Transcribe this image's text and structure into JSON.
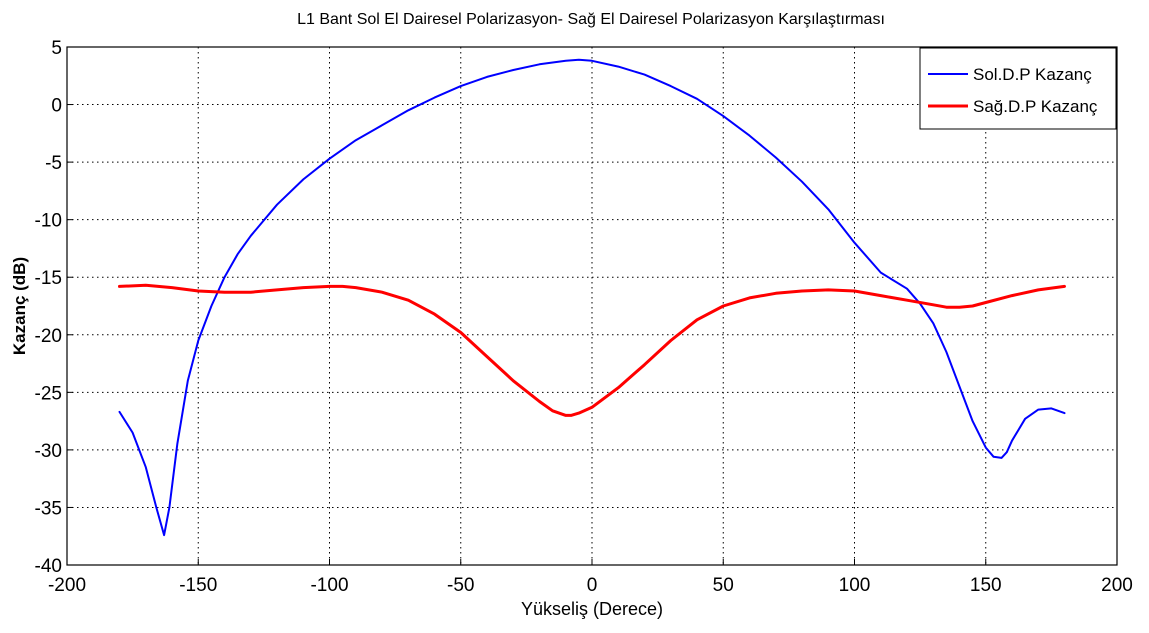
{
  "chart_data": {
    "type": "line",
    "title": "L1 Bant Sol El Dairesel Polarizasyon- Sağ El Dairesel Polarizasyon Karşılaştırması",
    "xlabel": "Yükseliş (Derece)",
    "ylabel": "Kazanç (dB)",
    "xlim": [
      -200,
      200
    ],
    "ylim": [
      -40,
      5
    ],
    "xticks": [
      -200,
      -150,
      -100,
      -50,
      0,
      50,
      100,
      150,
      200
    ],
    "yticks": [
      5,
      0,
      -5,
      -10,
      -15,
      -20,
      -25,
      -30,
      -35,
      -40
    ],
    "grid": true,
    "legend_position": "top-right",
    "series": [
      {
        "name": "Sol.D.P Kazanç",
        "color": "#0000ff",
        "x": [
          -180,
          -175,
          -170,
          -166,
          -163,
          -161,
          -158,
          -154,
          -150,
          -145,
          -140,
          -135,
          -130,
          -120,
          -110,
          -100,
          -90,
          -80,
          -70,
          -60,
          -50,
          -40,
          -30,
          -20,
          -10,
          -5,
          0,
          10,
          20,
          30,
          40,
          50,
          60,
          70,
          80,
          90,
          100,
          110,
          120,
          125,
          130,
          135,
          140,
          145,
          150,
          153,
          156,
          158,
          160,
          165,
          170,
          175,
          180
        ],
        "y": [
          -26.7,
          -28.5,
          -31.5,
          -35.0,
          -37.4,
          -35.0,
          -29.5,
          -24.0,
          -20.5,
          -17.5,
          -15.0,
          -13.0,
          -11.4,
          -8.7,
          -6.5,
          -4.7,
          -3.1,
          -1.8,
          -0.5,
          0.6,
          1.6,
          2.4,
          3.0,
          3.5,
          3.8,
          3.9,
          3.8,
          3.3,
          2.6,
          1.6,
          0.5,
          -1.0,
          -2.7,
          -4.6,
          -6.7,
          -9.1,
          -12.0,
          -14.6,
          -16.0,
          -17.3,
          -19.0,
          -21.5,
          -24.5,
          -27.5,
          -29.8,
          -30.6,
          -30.7,
          -30.2,
          -29.2,
          -27.3,
          -26.5,
          -26.4,
          -26.8
        ]
      },
      {
        "name": "Sağ.D.P Kazanç",
        "color": "#ff0000",
        "x": [
          -180,
          -170,
          -160,
          -150,
          -140,
          -130,
          -120,
          -110,
          -100,
          -95,
          -90,
          -80,
          -70,
          -60,
          -50,
          -40,
          -30,
          -20,
          -15,
          -10,
          -8,
          -5,
          0,
          10,
          20,
          30,
          40,
          50,
          60,
          70,
          80,
          90,
          100,
          110,
          120,
          130,
          135,
          140,
          145,
          150,
          160,
          170,
          180
        ],
        "y": [
          -15.8,
          -15.7,
          -15.9,
          -16.2,
          -16.3,
          -16.3,
          -16.1,
          -15.9,
          -15.8,
          -15.8,
          -15.9,
          -16.3,
          -17.0,
          -18.2,
          -19.8,
          -21.9,
          -24.0,
          -25.8,
          -26.6,
          -27.0,
          -27.0,
          -26.8,
          -26.3,
          -24.6,
          -22.6,
          -20.5,
          -18.7,
          -17.5,
          -16.8,
          -16.4,
          -16.2,
          -16.1,
          -16.2,
          -16.6,
          -17.0,
          -17.4,
          -17.6,
          -17.6,
          -17.5,
          -17.2,
          -16.6,
          -16.1,
          -15.8
        ]
      }
    ]
  }
}
